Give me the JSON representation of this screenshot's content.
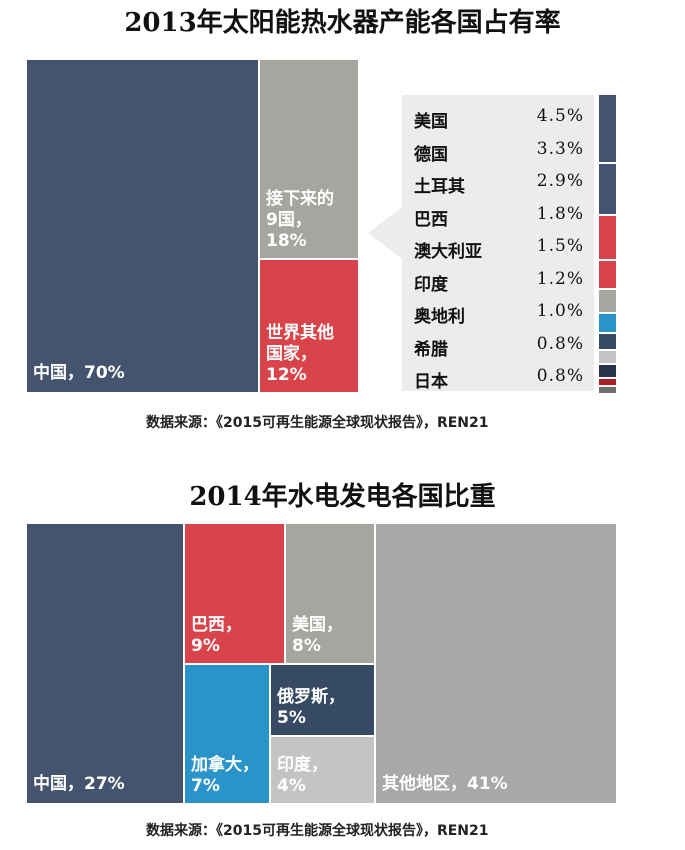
{
  "chart_data": [
    {
      "type": "treemap",
      "title": "2013年太阳能热水器产能各国占有率",
      "cells": [
        {
          "label": "中国，70%",
          "name": "中国",
          "value": 70,
          "color": "#44546e"
        },
        {
          "label": "接下来的\n9国，\n18%",
          "name": "接下来的9国",
          "value": 18,
          "color": "#a5a69f"
        },
        {
          "label": "世界其他\n国家，\n12%",
          "name": "世界其他国家",
          "value": 12,
          "color": "#d9444a"
        }
      ],
      "breakdown": [
        {
          "name": "美国",
          "value_label": "4.5%",
          "value": 4.5,
          "color": "#44546e"
        },
        {
          "name": "德国",
          "value_label": "3.3%",
          "value": 3.3,
          "color": "#44546e"
        },
        {
          "name": "土耳其",
          "value_label": "2.9%",
          "value": 2.9,
          "color": "#d9444a"
        },
        {
          "name": "巴西",
          "value_label": "1.8%",
          "value": 1.8,
          "color": "#d9444a"
        },
        {
          "name": "澳大利亚",
          "value_label": "1.5%",
          "value": 1.5,
          "color": "#a5a69f"
        },
        {
          "name": "印度",
          "value_label": "1.2%",
          "value": 1.2,
          "color": "#2a93c8"
        },
        {
          "name": "奥地利",
          "value_label": "1.0%",
          "value": 1.0,
          "color": "#364b63"
        },
        {
          "name": "希腊",
          "value_label": "0.8%",
          "value": 0.8,
          "color": "#c4c4c4"
        },
        {
          "name": "日本",
          "value_label": "0.8%",
          "value": 0.8,
          "color": "#26344a"
        }
      ],
      "source": "数据来源：《2015可再生能源全球现状报告》，REN21"
    },
    {
      "type": "treemap",
      "title": "2014年水电发电各国比重",
      "cells": [
        {
          "label": "中国，27%",
          "name": "中国",
          "value": 27,
          "color": "#44546e"
        },
        {
          "label": "巴西，\n9%",
          "name": "巴西",
          "value": 9,
          "color": "#d9444a"
        },
        {
          "label": "美国，\n8%",
          "name": "美国",
          "value": 8,
          "color": "#a5a69f"
        },
        {
          "label": "俄罗斯，\n5%",
          "name": "俄罗斯",
          "value": 5,
          "color": "#364b63"
        },
        {
          "label": "加拿大，\n7%",
          "name": "加拿大",
          "value": 7,
          "color": "#2a93c8"
        },
        {
          "label": "印度，\n4%",
          "name": "印度",
          "value": 4,
          "color": "#c4c4c4"
        },
        {
          "label": "其他地区，41%",
          "name": "其他地区",
          "value": 41,
          "color": "#a9a7a7"
        }
      ],
      "source": "数据来源：《2015可再生能源全球现状报告》，REN21"
    }
  ],
  "extra_swatch_colors": [
    "#a71f24",
    "#6e6e6e"
  ]
}
